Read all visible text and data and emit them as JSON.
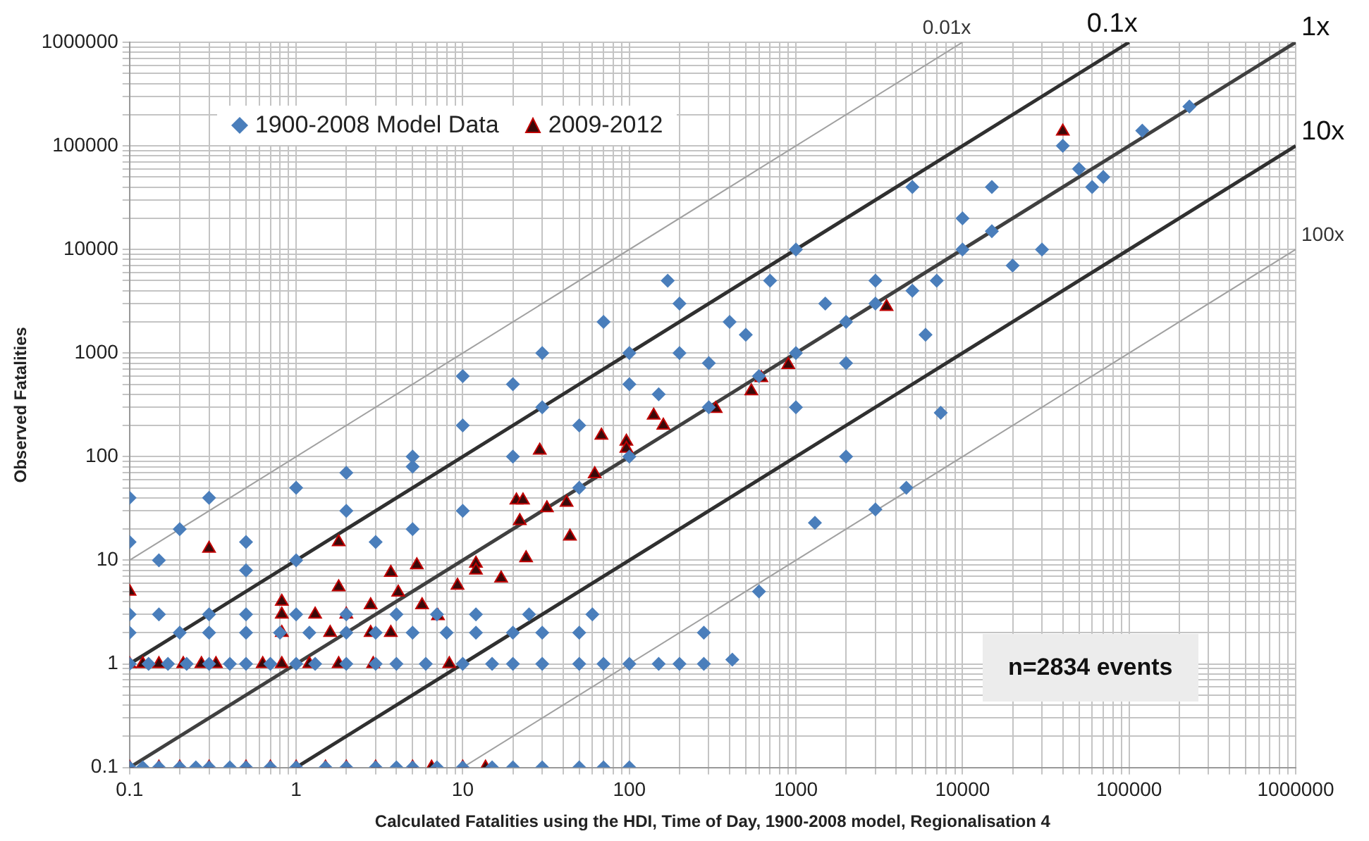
{
  "chart_data": {
    "type": "scatter",
    "xlabel": "Calculated Fatalities using the HDI, Time of Day, 1900-2008 model, Regionalisation 4",
    "ylabel": "Observed Fatalities",
    "log": "xy",
    "grid": true,
    "legend": "top left",
    "annotations": [
      "n=2834 events"
    ],
    "xlim": [
      0.1,
      1000000
    ],
    "ylim": [
      0.1,
      1000000
    ],
    "xticks": [
      0.1,
      {
        "value": 0.2,
        "label": null
      },
      {
        "value": 0.3,
        "label": null
      },
      {
        "value": 0.4,
        "label": null
      },
      {
        "value": 0.5,
        "label": null
      },
      {
        "value": 0.6,
        "label": null
      },
      {
        "value": 0.7,
        "label": null
      },
      {
        "value": 0.8,
        "label": null
      },
      {
        "value": 0.9,
        "label": null
      },
      1,
      {
        "value": 2,
        "label": null
      },
      {
        "value": 3,
        "label": null
      },
      {
        "value": 4,
        "label": null
      },
      {
        "value": 5,
        "label": null
      },
      {
        "value": 6,
        "label": null
      },
      {
        "value": 7,
        "label": null
      },
      {
        "value": 8,
        "label": null
      },
      {
        "value": 9,
        "label": null
      },
      10,
      {
        "value": 20,
        "label": null
      },
      {
        "value": 30,
        "label": null
      },
      {
        "value": 40,
        "label": null
      },
      {
        "value": 50,
        "label": null
      },
      {
        "value": 60,
        "label": null
      },
      {
        "value": 70,
        "label": null
      },
      {
        "value": 80,
        "label": null
      },
      {
        "value": 90,
        "label": null
      },
      100,
      {
        "value": 200,
        "label": null
      },
      {
        "value": 300,
        "label": null
      },
      {
        "value": 400,
        "label": null
      },
      {
        "value": 500,
        "label": null
      },
      {
        "value": 600,
        "label": null
      },
      {
        "value": 700,
        "label": null
      },
      {
        "value": 800,
        "label": null
      },
      {
        "value": 900,
        "label": null
      },
      1000,
      {
        "value": 2000,
        "label": null
      },
      {
        "value": 3000,
        "label": null
      },
      {
        "value": 4000,
        "label": null
      },
      {
        "value": 5000,
        "label": null
      },
      {
        "value": 6000,
        "label": null
      },
      {
        "value": 7000,
        "label": null
      },
      {
        "value": 8000,
        "label": null
      },
      {
        "value": 9000,
        "label": null
      },
      10000,
      {
        "value": 20000,
        "label": null
      },
      {
        "value": 30000,
        "label": null
      },
      {
        "value": 40000,
        "label": null
      },
      {
        "value": 50000,
        "label": null
      },
      {
        "value": 60000,
        "label": null
      },
      {
        "value": 70000,
        "label": null
      },
      {
        "value": 80000,
        "label": null
      },
      {
        "value": 90000,
        "label": null
      },
      100000,
      {
        "value": 200000,
        "label": null
      },
      {
        "value": 300000,
        "label": null
      },
      {
        "value": 400000,
        "label": null
      },
      {
        "value": 500000,
        "label": null
      },
      {
        "value": 600000,
        "label": null
      },
      {
        "value": 700000,
        "label": null
      },
      {
        "value": 800000,
        "label": null
      },
      {
        "value": 900000,
        "label": null
      },
      1000000
    ],
    "yticks": [
      0.1,
      {
        "value": 0.2,
        "label": null
      },
      {
        "value": 0.3,
        "label": null
      },
      {
        "value": 0.4,
        "label": null
      },
      {
        "value": 0.5,
        "label": null
      },
      {
        "value": 0.6,
        "label": null
      },
      {
        "value": 0.7,
        "label": null
      },
      {
        "value": 0.8,
        "label": null
      },
      {
        "value": 0.9,
        "label": null
      },
      1,
      {
        "value": 2,
        "label": null
      },
      {
        "value": 3,
        "label": null
      },
      {
        "value": 4,
        "label": null
      },
      {
        "value": 5,
        "label": null
      },
      {
        "value": 6,
        "label": null
      },
      {
        "value": 7,
        "label": null
      },
      {
        "value": 8,
        "label": null
      },
      {
        "value": 9,
        "label": null
      },
      10,
      {
        "value": 20,
        "label": null
      },
      {
        "value": 30,
        "label": null
      },
      {
        "value": 40,
        "label": null
      },
      {
        "value": 50,
        "label": null
      },
      {
        "value": 60,
        "label": null
      },
      {
        "value": 70,
        "label": null
      },
      {
        "value": 80,
        "label": null
      },
      {
        "value": 90,
        "label": null
      },
      100,
      {
        "value": 200,
        "label": null
      },
      {
        "value": 300,
        "label": null
      },
      {
        "value": 400,
        "label": null
      },
      {
        "value": 500,
        "label": null
      },
      {
        "value": 600,
        "label": null
      },
      {
        "value": 700,
        "label": null
      },
      {
        "value": 800,
        "label": null
      },
      {
        "value": 900,
        "label": null
      },
      1000,
      {
        "value": 2000,
        "label": null
      },
      {
        "value": 3000,
        "label": null
      },
      {
        "value": 4000,
        "label": null
      },
      {
        "value": 5000,
        "label": null
      },
      {
        "value": 6000,
        "label": null
      },
      {
        "value": 7000,
        "label": null
      },
      {
        "value": 8000,
        "label": null
      },
      {
        "value": 9000,
        "label": null
      },
      10000,
      {
        "value": 20000,
        "label": null
      },
      {
        "value": 30000,
        "label": null
      },
      {
        "value": 40000,
        "label": null
      },
      {
        "value": 50000,
        "label": null
      },
      {
        "value": 60000,
        "label": null
      },
      {
        "value": 70000,
        "label": null
      },
      {
        "value": 80000,
        "label": null
      },
      {
        "value": 90000,
        "label": null
      },
      100000,
      {
        "value": 200000,
        "label": null
      },
      {
        "value": 300000,
        "label": null
      },
      {
        "value": 400000,
        "label": null
      },
      {
        "value": 500000,
        "label": null
      },
      {
        "value": 600000,
        "label": null
      },
      {
        "value": 700000,
        "label": null
      },
      {
        "value": 800000,
        "label": null
      },
      {
        "value": 900000,
        "label": null
      },
      1000000
    ],
    "series": [
      {
        "name": "1900-2008 Model Data",
        "type": "scatter",
        "marker": "diamond",
        "color": "#4a7ebb",
        "x": [
          0.1,
          0.12,
          0.15,
          0.2,
          0.25,
          0.3,
          0.4,
          0.5,
          0.7,
          1,
          1.5,
          2,
          3,
          4,
          5,
          7,
          10,
          15,
          20,
          30,
          50,
          70,
          100,
          0.1,
          0.13,
          0.17,
          0.22,
          0.3,
          0.4,
          0.5,
          0.7,
          1,
          1.3,
          2,
          3,
          4,
          6,
          10,
          15,
          20,
          30,
          50,
          70,
          100,
          150,
          200,
          280,
          415,
          0.1,
          0.2,
          0.3,
          0.5,
          0.8,
          1.2,
          2,
          3,
          5,
          8,
          12,
          20,
          30,
          50,
          280,
          0.1,
          0.15,
          0.3,
          0.5,
          1,
          2,
          4,
          7,
          12,
          25,
          60,
          0.1,
          0.1,
          0.15,
          0.2,
          0.3,
          0.5,
          0.5,
          1,
          1,
          2,
          2,
          3,
          5,
          5,
          5,
          10,
          10,
          10,
          20,
          20,
          30,
          30,
          50,
          50,
          70,
          100,
          100,
          100,
          150,
          170,
          200,
          200,
          300,
          300,
          400,
          500,
          600,
          700,
          1000,
          1000,
          1000,
          1500,
          2000,
          2000,
          3000,
          3000,
          5000,
          5000,
          7000,
          10000,
          10000,
          15000,
          15000,
          20000,
          30000,
          40000,
          50000,
          60000,
          70000,
          120000,
          230000,
          600,
          1300,
          3000,
          4600,
          7400,
          6000,
          2000
        ],
        "values": [
          0.1,
          0.1,
          0.1,
          0.1,
          0.1,
          0.1,
          0.1,
          0.1,
          0.1,
          0.1,
          0.1,
          0.1,
          0.1,
          0.1,
          0.1,
          0.1,
          0.1,
          0.1,
          0.1,
          0.1,
          0.1,
          0.1,
          0.1,
          1,
          1,
          1,
          1,
          1,
          1,
          1,
          1,
          1,
          1,
          1,
          1,
          1,
          1,
          1,
          1,
          1,
          1,
          1,
          1,
          1,
          1,
          1,
          1,
          1.1,
          2,
          2,
          2,
          2,
          2,
          2,
          2,
          2,
          2,
          2,
          2,
          2,
          2,
          2,
          2,
          3,
          3,
          3,
          3,
          3,
          3,
          3,
          3,
          3,
          3,
          3,
          40,
          15,
          10,
          20,
          40,
          15,
          8,
          50,
          10,
          30,
          70,
          15,
          80,
          100,
          20,
          600,
          30,
          200,
          500,
          100,
          300,
          1000,
          200,
          50,
          2000,
          500,
          100,
          1000,
          400,
          5000,
          1000,
          3000,
          300,
          800,
          2000,
          1500,
          600,
          5000,
          1000,
          10000,
          300,
          3000,
          2000,
          800,
          5000,
          3000,
          4000,
          40000,
          5000,
          10000,
          20000,
          40000,
          15000,
          7000,
          10000,
          100000,
          60000,
          40000,
          50000,
          140000,
          240000,
          5,
          23,
          31,
          50,
          265,
          1500,
          100
        ]
      },
      {
        "name": "2009-2012",
        "type": "scatter",
        "marker": "triangle",
        "color": "#3a0a0a",
        "x": [
          0.1,
          0.15,
          0.2,
          0.3,
          0.5,
          0.7,
          1,
          1.5,
          2,
          3,
          5,
          6.5,
          10,
          13.7,
          0.1,
          0.12,
          0.15,
          0.21,
          0.27,
          0.33,
          0.63,
          0.82,
          1.2,
          1.8,
          2.9,
          8.3,
          0.1,
          0.3,
          0.82,
          0.82,
          0.82,
          1.3,
          1.8,
          1.8,
          2,
          1.6,
          2.8,
          2.8,
          3.7,
          3.7,
          4.1,
          5.3,
          5.7,
          7.1,
          9.3,
          12,
          12,
          17,
          24,
          21,
          23,
          22,
          29,
          32,
          42,
          44,
          62,
          68,
          96,
          96,
          140,
          160,
          330,
          540,
          620,
          900,
          3500,
          40000
        ],
        "values": [
          0.1,
          0.1,
          0.1,
          0.1,
          0.1,
          0.1,
          0.1,
          0.1,
          0.1,
          0.1,
          0.1,
          0.1,
          0.1,
          0.1,
          1,
          1,
          1,
          1,
          1,
          1,
          1,
          1,
          1,
          1,
          1,
          1,
          5,
          13,
          4,
          3,
          2,
          3,
          15,
          5.5,
          3,
          2,
          3.7,
          2,
          2,
          7.6,
          4.9,
          9,
          3.7,
          2.9,
          5.7,
          9.3,
          8,
          6.7,
          10.5,
          38,
          38,
          24,
          115,
          32,
          36,
          17,
          68,
          160,
          140,
          120,
          250,
          200,
          290,
          430,
          575,
          770,
          2800,
          138000
        ]
      },
      {
        "name": "1x",
        "type": "line",
        "color": "#404040",
        "x": [
          0.1,
          1000000
        ],
        "values": [
          0.1,
          1000000
        ]
      },
      {
        "name": "0.1x",
        "type": "line",
        "color": "#303030",
        "x": [
          0.1,
          100000
        ],
        "values": [
          1,
          1000000
        ]
      },
      {
        "name": "0.01x",
        "type": "line",
        "color": "#a0a0a0",
        "x": [
          0.1,
          10000
        ],
        "values": [
          10,
          1000000
        ]
      },
      {
        "name": "10x",
        "type": "line",
        "color": "#303030",
        "x": [
          1,
          1000000
        ],
        "values": [
          0.1,
          100000
        ]
      },
      {
        "name": "100x",
        "type": "line",
        "color": "#a0a0a0",
        "x": [
          10,
          1000000
        ],
        "values": [
          0.1,
          10000
        ]
      }
    ]
  }
}
